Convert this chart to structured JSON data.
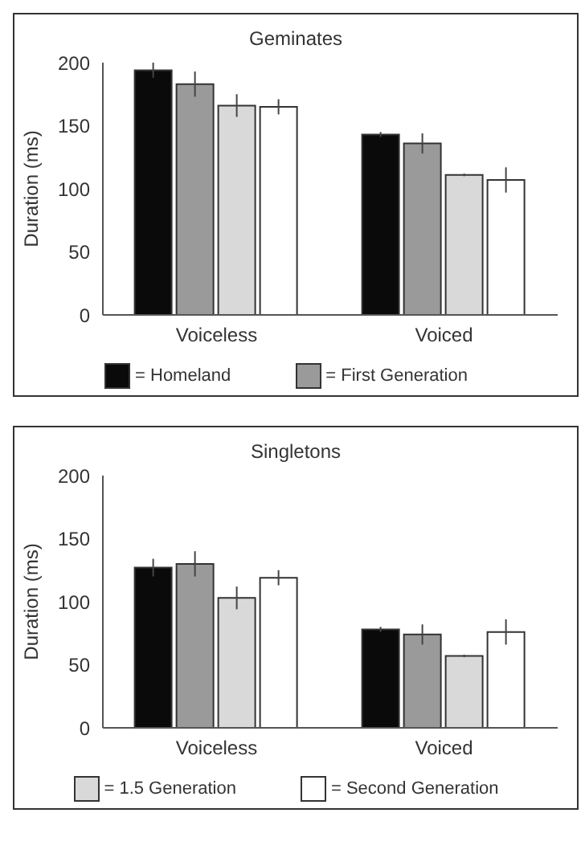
{
  "chart_data": [
    {
      "type": "bar",
      "title": "Geminates",
      "ylabel": "Duration (ms)",
      "categories": [
        "Voiceless",
        "Voiced"
      ],
      "ylim": [
        0,
        200
      ],
      "yticks": [
        0,
        50,
        100,
        150,
        200
      ],
      "legend": "bottom",
      "series": [
        {
          "name": "= Homeland",
          "color": "#0a0a0a",
          "values": [
            194,
            143
          ],
          "errors": [
            6,
            2
          ]
        },
        {
          "name": "= First Generation",
          "color": "#9a9a9a",
          "values": [
            183,
            136
          ],
          "errors": [
            10,
            8
          ]
        },
        {
          "color": "#d9d9d9",
          "values": [
            166,
            111
          ],
          "errors": [
            9,
            1
          ]
        },
        {
          "color": "#ffffff",
          "values": [
            165,
            107
          ],
          "errors": [
            6,
            10
          ]
        }
      ]
    },
    {
      "type": "bar",
      "title": "Singletons",
      "ylabel": "Duration (ms)",
      "categories": [
        "Voiceless",
        "Voiced"
      ],
      "ylim": [
        0,
        200
      ],
      "yticks": [
        0,
        50,
        100,
        150,
        200
      ],
      "legend": "bottom",
      "series": [
        {
          "color": "#0a0a0a",
          "values": [
            127,
            78
          ],
          "errors": [
            7,
            2
          ]
        },
        {
          "color": "#9a9a9a",
          "values": [
            130,
            74
          ],
          "errors": [
            10,
            8
          ]
        },
        {
          "name": "= 1.5 Generation",
          "color": "#d9d9d9",
          "values": [
            103,
            57
          ],
          "errors": [
            9,
            1
          ]
        },
        {
          "name": "= Second Generation",
          "color": "#ffffff",
          "values": [
            119,
            76
          ],
          "errors": [
            6,
            10
          ]
        }
      ]
    }
  ]
}
